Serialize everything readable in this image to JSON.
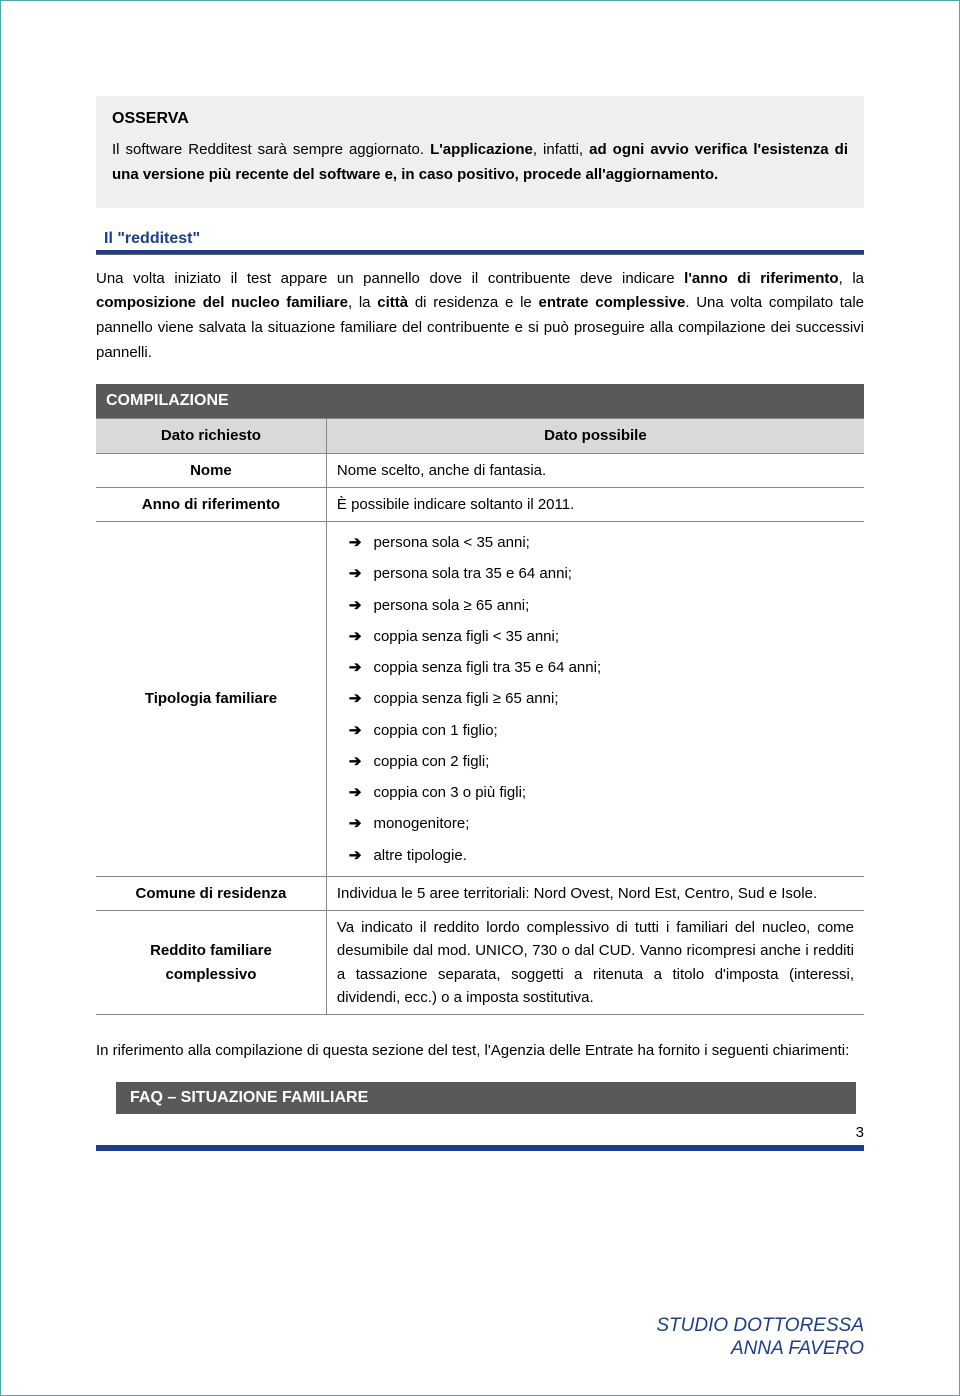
{
  "osserva": {
    "title": "OSSERVA",
    "text_parts": [
      "Il software Redditest sarà sempre aggiornato. ",
      "L'applicazione",
      ", infatti, ",
      "ad ogni avvio verifica l'esistenza di una versione più recente del software e, in caso positivo, procede all'aggiornamento."
    ]
  },
  "section": {
    "heading": "Il \"redditest\"",
    "paragraph_parts": [
      "Una volta iniziato il test appare un pannello dove il contribuente deve indicare ",
      "l'anno di riferimento",
      ", la ",
      "composizione del nucleo familiare",
      ", la ",
      "città",
      " di residenza e le ",
      "entrate complessive",
      ". Una volta compilato tale pannello viene salvata la situazione familiare del contribuente e si può proseguire alla compilazione dei successivi pannelli."
    ]
  },
  "table": {
    "header": "COMPILAZIONE",
    "col1": "Dato richiesto",
    "col2": "Dato possibile",
    "rows": {
      "nome": {
        "label": "Nome",
        "value": "Nome scelto, anche di fantasia."
      },
      "anno": {
        "label": "Anno di riferimento",
        "value": "È possibile indicare soltanto il 2011."
      },
      "tipologia": {
        "label": "Tipologia familiare",
        "items": [
          "persona sola < 35 anni;",
          "persona sola tra 35 e 64 anni;",
          "persona sola ≥ 65 anni;",
          "coppia senza figli < 35 anni;",
          "coppia senza figli tra 35 e 64 anni;",
          "coppia senza figli ≥ 65 anni;",
          "coppia con 1 figlio;",
          "coppia con 2 figli;",
          "coppia con 3 o più figli;",
          "monogenitore;",
          "altre tipologie."
        ]
      },
      "comune": {
        "label": "Comune di residenza",
        "value": "Individua le 5 aree territoriali: Nord Ovest, Nord Est, Centro, Sud e Isole."
      },
      "reddito": {
        "label": "Reddito familiare complessivo",
        "value": "Va indicato il reddito lordo complessivo di tutti i familiari del nucleo, come desumibile dal mod. UNICO, 730 o dal CUD. Vanno ricompresi anche i redditi a tassazione separata, soggetti a ritenuta a titolo d'imposta (interessi, dividendi, ecc.) o a imposta sostitutiva."
      }
    }
  },
  "after_table": "In riferimento alla compilazione di questa sezione del test, l'Agenzia delle Entrate ha fornito i seguenti chiarimenti:",
  "faq": "FAQ – SITUAZIONE FAMILIARE",
  "page_number": "3",
  "footer": {
    "line1": "STUDIO DOTTORESSA",
    "line2": "ANNA FAVERO"
  }
}
